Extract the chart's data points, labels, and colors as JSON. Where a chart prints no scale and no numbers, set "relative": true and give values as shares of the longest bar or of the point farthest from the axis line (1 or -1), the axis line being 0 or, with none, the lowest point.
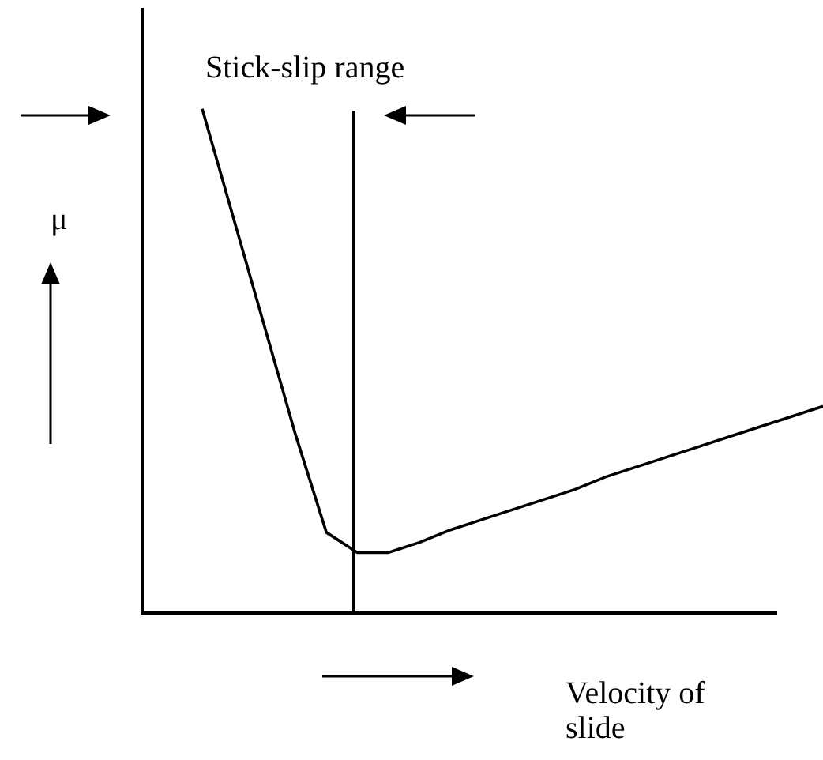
{
  "chart_data": {
    "type": "line",
    "relative": true,
    "ylabel": "μ",
    "xlabel": "Velocity of slide",
    "annotations": [
      "Stick-slip range"
    ],
    "categories": [
      null,
      null,
      null,
      null,
      null,
      null,
      null,
      null,
      null,
      null,
      null,
      null,
      null,
      null,
      null,
      null,
      null,
      null,
      null,
      null,
      null
    ],
    "series": [
      {
        "color": "#000000",
        "values": [
          1,
          0.785,
          0.57,
          0.355,
          0.16,
          0.12,
          0.12,
          0.14,
          0.165,
          0.185,
          0.205,
          0.225,
          0.245,
          0.27,
          0.29,
          0.31,
          0.33,
          0.35,
          0.37,
          0.39,
          0.41
        ]
      }
    ],
    "marker": "none",
    "line_style": "solid",
    "legend": false
  }
}
